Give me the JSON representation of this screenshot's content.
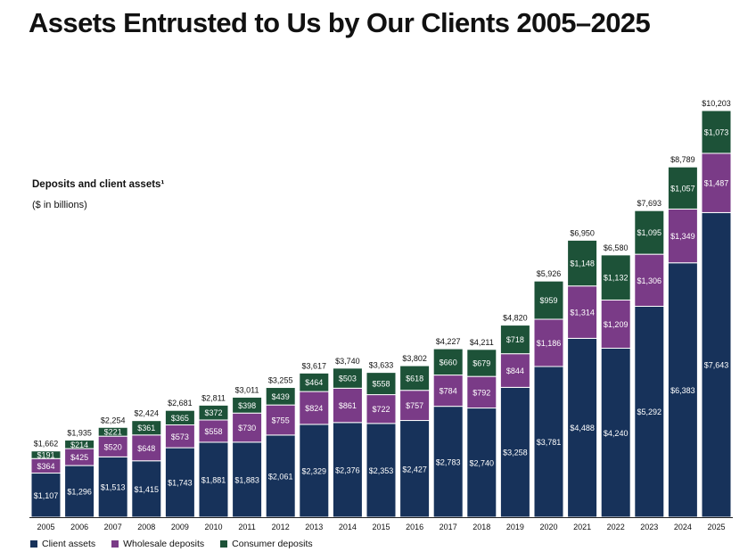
{
  "chart_data": {
    "type": "bar",
    "stacked": true,
    "title": "Assets Entrusted to Us by Our Clients 2005–2025",
    "subtitle": "Deposits and client assets¹",
    "units_note": "($ in billions)",
    "categories": [
      "2005",
      "2006",
      "2007",
      "2008",
      "2009",
      "2010",
      "2011",
      "2012",
      "2013",
      "2014",
      "2015",
      "2016",
      "2017",
      "2018",
      "2019",
      "2020",
      "2021",
      "2022",
      "2023",
      "2024",
      "2025"
    ],
    "series": [
      {
        "name": "Client assets",
        "color": "#17325a",
        "values": [
          1107,
          1296,
          1513,
          1415,
          1743,
          1881,
          1883,
          2061,
          2329,
          2376,
          2353,
          2427,
          2783,
          2740,
          3258,
          3781,
          4488,
          4240,
          5292,
          6383,
          7643
        ]
      },
      {
        "name": "Wholesale deposits",
        "color": "#7a3b87",
        "values": [
          364,
          425,
          520,
          648,
          573,
          558,
          730,
          755,
          824,
          861,
          722,
          757,
          784,
          792,
          844,
          1186,
          1314,
          1209,
          1306,
          1349,
          1487
        ]
      },
      {
        "name": "Consumer deposits",
        "color": "#1d5238",
        "values": [
          191,
          214,
          221,
          361,
          365,
          372,
          398,
          439,
          464,
          503,
          558,
          618,
          660,
          679,
          718,
          959,
          1148,
          1132,
          1095,
          1057,
          1073
        ]
      }
    ],
    "totals": [
      1662,
      1935,
      2254,
      2424,
      2681,
      2811,
      3011,
      3255,
      3617,
      3740,
      3633,
      3802,
      4227,
      4211,
      4820,
      5926,
      6950,
      6580,
      7693,
      8789,
      10203
    ],
    "ylim": [
      0,
      10203
    ],
    "legend_position": "bottom-left",
    "grid": false
  }
}
